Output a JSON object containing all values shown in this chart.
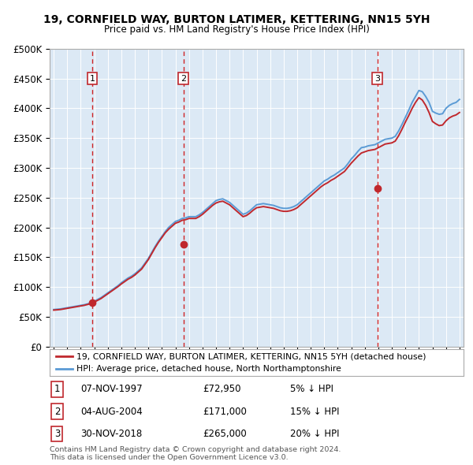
{
  "title": "19, CORNFIELD WAY, BURTON LATIMER, KETTERING, NN15 5YH",
  "subtitle": "Price paid vs. HM Land Registry's House Price Index (HPI)",
  "background_color": "#dce9f5",
  "plot_bg_color": "#dce9f5",
  "hpi_color": "#5b9bd5",
  "price_color": "#c0282d",
  "ylim": [
    0,
    500000
  ],
  "yticks": [
    0,
    50000,
    100000,
    150000,
    200000,
    250000,
    300000,
    350000,
    400000,
    450000,
    500000
  ],
  "ytick_labels": [
    "£0",
    "£50K",
    "£100K",
    "£150K",
    "£200K",
    "£250K",
    "£300K",
    "£350K",
    "£400K",
    "£450K",
    "£500K"
  ],
  "sale_dates": [
    1997.85,
    2004.59,
    2018.92
  ],
  "sale_prices": [
    72950,
    171000,
    265000
  ],
  "sale_labels": [
    "1",
    "2",
    "3"
  ],
  "vline_x": [
    1997.85,
    2004.59,
    2018.92
  ],
  "legend_property": "19, CORNFIELD WAY, BURTON LATIMER, KETTERING, NN15 5YH (detached house)",
  "legend_hpi": "HPI: Average price, detached house, North Northamptonshire",
  "table_rows": [
    {
      "num": "1",
      "date": "07-NOV-1997",
      "price": "£72,950",
      "note": "5% ↓ HPI"
    },
    {
      "num": "2",
      "date": "04-AUG-2004",
      "price": "£171,000",
      "note": "15% ↓ HPI"
    },
    {
      "num": "3",
      "date": "30-NOV-2018",
      "price": "£265,000",
      "note": "20% ↓ HPI"
    }
  ],
  "copyright": "Contains HM Land Registry data © Crown copyright and database right 2024.\nThis data is licensed under the Open Government Licence v3.0.",
  "hpi_years": [
    1995.0,
    1995.25,
    1995.5,
    1995.75,
    1996.0,
    1996.25,
    1996.5,
    1996.75,
    1997.0,
    1997.25,
    1997.5,
    1997.75,
    1998.0,
    1998.25,
    1998.5,
    1998.75,
    1999.0,
    1999.25,
    1999.5,
    1999.75,
    2000.0,
    2000.25,
    2000.5,
    2000.75,
    2001.0,
    2001.25,
    2001.5,
    2001.75,
    2002.0,
    2002.25,
    2002.5,
    2002.75,
    2003.0,
    2003.25,
    2003.5,
    2003.75,
    2004.0,
    2004.25,
    2004.5,
    2004.75,
    2005.0,
    2005.25,
    2005.5,
    2005.75,
    2006.0,
    2006.25,
    2006.5,
    2006.75,
    2007.0,
    2007.25,
    2007.5,
    2007.75,
    2008.0,
    2008.25,
    2008.5,
    2008.75,
    2009.0,
    2009.25,
    2009.5,
    2009.75,
    2010.0,
    2010.25,
    2010.5,
    2010.75,
    2011.0,
    2011.25,
    2011.5,
    2011.75,
    2012.0,
    2012.25,
    2012.5,
    2012.75,
    2013.0,
    2013.25,
    2013.5,
    2013.75,
    2014.0,
    2014.25,
    2014.5,
    2014.75,
    2015.0,
    2015.25,
    2015.5,
    2015.75,
    2016.0,
    2016.25,
    2016.5,
    2016.75,
    2017.0,
    2017.25,
    2017.5,
    2017.75,
    2018.0,
    2018.25,
    2018.5,
    2018.75,
    2019.0,
    2019.25,
    2019.5,
    2019.75,
    2020.0,
    2020.25,
    2020.5,
    2020.75,
    2021.0,
    2021.25,
    2021.5,
    2021.75,
    2022.0,
    2022.25,
    2022.5,
    2022.75,
    2023.0,
    2023.25,
    2023.5,
    2023.75,
    2024.0,
    2024.25,
    2024.5,
    2024.75,
    2025.0
  ],
  "hpi_values": [
    62000,
    62500,
    63000,
    64000,
    65000,
    66000,
    67000,
    68000,
    69000,
    70000,
    71500,
    73000,
    76000,
    79000,
    82000,
    86000,
    90000,
    94000,
    98000,
    102000,
    107000,
    111000,
    115000,
    118000,
    122000,
    127000,
    132000,
    140000,
    148000,
    158000,
    168000,
    177000,
    185000,
    193000,
    200000,
    205000,
    210000,
    212000,
    215000,
    216000,
    218000,
    218000,
    218000,
    221000,
    225000,
    230000,
    235000,
    240000,
    245000,
    247000,
    248000,
    245000,
    242000,
    237000,
    232000,
    227000,
    222000,
    224000,
    228000,
    233000,
    238000,
    239000,
    240000,
    239000,
    238000,
    237000,
    235000,
    233000,
    232000,
    232000,
    233000,
    235000,
    238000,
    243000,
    248000,
    253000,
    258000,
    263000,
    268000,
    273000,
    278000,
    281000,
    285000,
    288000,
    292000,
    296000,
    300000,
    307000,
    315000,
    321000,
    328000,
    334000,
    335000,
    337000,
    338000,
    339000,
    342000,
    345000,
    348000,
    349000,
    350000,
    353000,
    362000,
    373000,
    385000,
    397000,
    410000,
    420000,
    430000,
    428000,
    420000,
    410000,
    395000,
    392000,
    390000,
    391000,
    400000,
    405000,
    408000,
    410000,
    415000
  ],
  "price_values": [
    61000,
    61500,
    62000,
    63000,
    64000,
    65000,
    66000,
    67000,
    68000,
    69000,
    70500,
    72000,
    74500,
    77500,
    80500,
    84500,
    88500,
    92500,
    96500,
    100500,
    105000,
    109000,
    113000,
    116000,
    120000,
    125000,
    130000,
    138000,
    146000,
    156000,
    166000,
    175000,
    183000,
    191000,
    197000,
    202000,
    207000,
    209000,
    212000,
    213000,
    215000,
    215000,
    215000,
    218000,
    222000,
    227000,
    232000,
    237000,
    241000,
    243000,
    244000,
    241000,
    238000,
    233000,
    228000,
    223000,
    218000,
    220000,
    224000,
    229000,
    233000,
    234000,
    235000,
    234000,
    233000,
    232000,
    230000,
    228000,
    227000,
    227000,
    228000,
    230000,
    233000,
    238000,
    243000,
    248000,
    253000,
    258000,
    263000,
    268000,
    272000,
    275000,
    279000,
    282000,
    286000,
    290000,
    294000,
    301000,
    308000,
    314000,
    320000,
    325000,
    327000,
    329000,
    330000,
    331000,
    334000,
    337000,
    340000,
    341000,
    342000,
    345000,
    354000,
    365000,
    377000,
    388000,
    400000,
    410000,
    418000,
    414000,
    405000,
    393000,
    378000,
    374000,
    371000,
    372000,
    379000,
    384000,
    387000,
    389000,
    393000
  ]
}
